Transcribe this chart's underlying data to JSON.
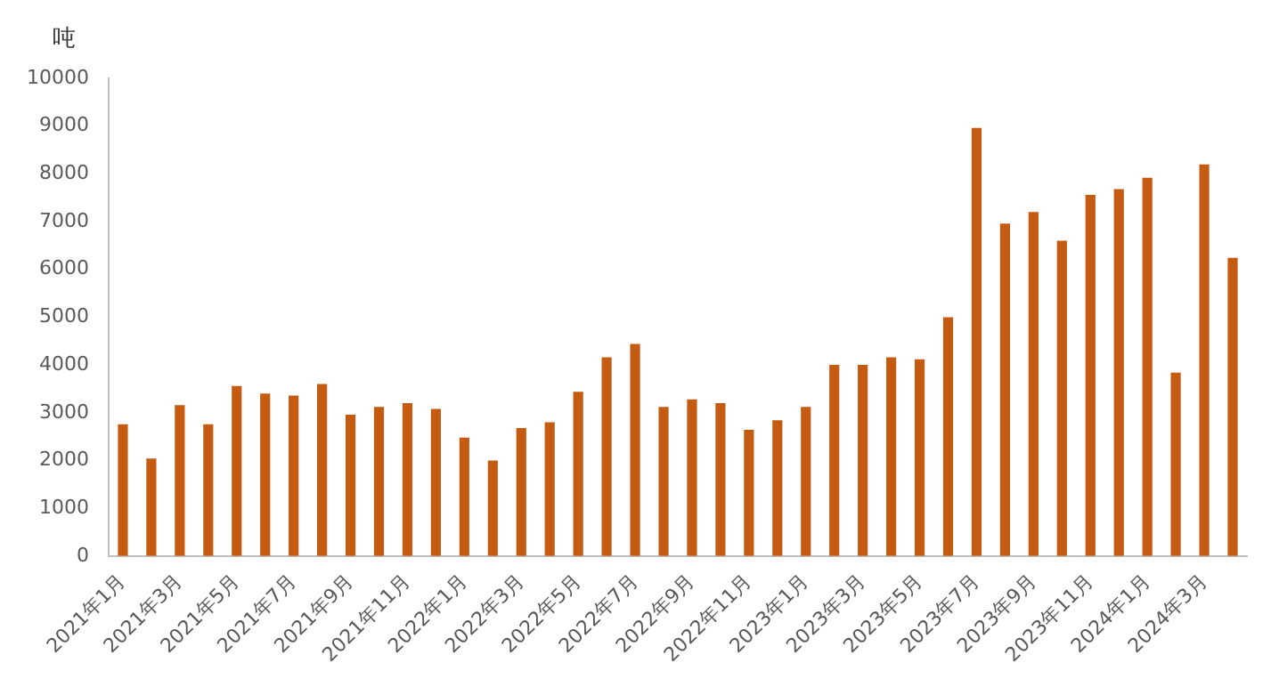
{
  "chart_data": {
    "type": "bar",
    "ylabel": "吨",
    "categories": [
      "2021年1月",
      null,
      "2021年3月",
      null,
      "2021年5月",
      null,
      "2021年7月",
      null,
      "2021年9月",
      null,
      "2021年11月",
      null,
      "2022年1月",
      null,
      "2022年3月",
      null,
      "2022年5月",
      null,
      "2022年7月",
      null,
      "2022年9月",
      null,
      "2022年11月",
      null,
      "2023年1月",
      null,
      "2023年3月",
      null,
      "2023年5月",
      null,
      "2023年7月",
      null,
      "2023年9月",
      null,
      "2023年11月",
      null,
      "2024年1月",
      null,
      "2024年3月",
      null
    ],
    "values": [
      2760,
      2040,
      3160,
      2760,
      3560,
      3400,
      3360,
      3600,
      2960,
      3120,
      3200,
      3080,
      2480,
      2000,
      2680,
      2800,
      3440,
      4160,
      4440,
      3120,
      3280,
      3200,
      2640,
      2840,
      3120,
      4000,
      4000,
      4160,
      4120,
      5000,
      8960,
      6960,
      7200,
      6600,
      7560,
      7680,
      7920,
      3840,
      8200,
      6240
    ],
    "color": "#c55a11",
    "ylim": [
      0,
      10000
    ],
    "yticks": [
      0,
      1000,
      2000,
      3000,
      4000,
      5000,
      6000,
      7000,
      8000,
      9000,
      10000
    ],
    "grid": false,
    "legend": false
  }
}
